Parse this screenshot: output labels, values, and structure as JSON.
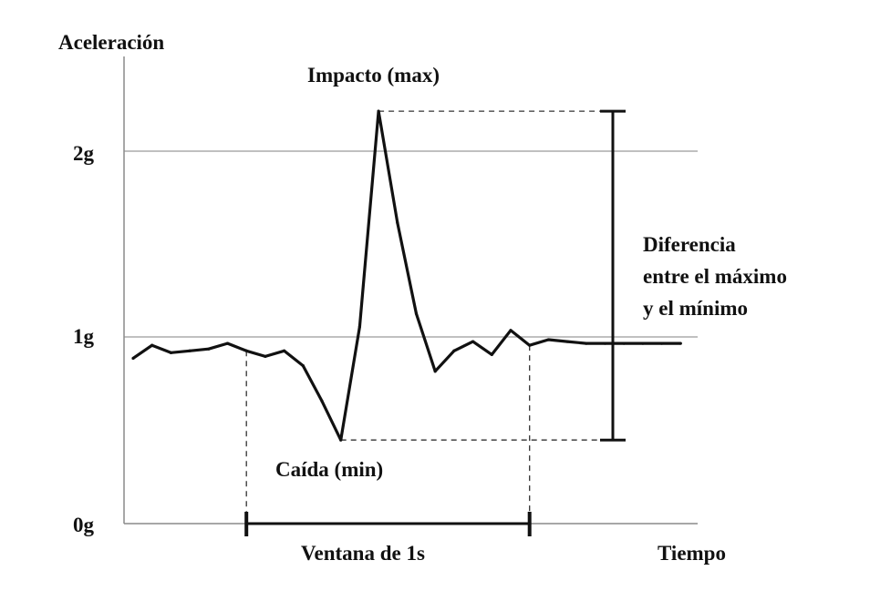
{
  "labels": {
    "y_axis_title": "Aceleración",
    "x_axis_title": "Tiempo",
    "impact": "Impacto (max)",
    "fall": "Caída (min)",
    "window": "Ventana de 1s",
    "difference_line1": "Diferencia",
    "difference_line2": "entre el máximo",
    "difference_line3": "y el mínimo"
  },
  "y_ticks": [
    "2g",
    "1g",
    "0g"
  ],
  "colors": {
    "signal": "#111111",
    "grid": "#9a9a9a",
    "axis": "#8a8a8a",
    "annotation": "#111111",
    "dashed": "#333333"
  },
  "chart_data": {
    "type": "line",
    "xlabel": "Tiempo",
    "ylabel": "Aceleración",
    "y_units": "g",
    "ylim": [
      0,
      2.3
    ],
    "y_gridlines": [
      1,
      2
    ],
    "series": [
      {
        "values": [
          0.89,
          0.96,
          0.92,
          0.93,
          0.94,
          0.97,
          0.93,
          0.9,
          0.93,
          0.85,
          0.66,
          0.45,
          1.06,
          2.22,
          1.62,
          1.13,
          0.82,
          0.93,
          0.98,
          0.91,
          1.04,
          0.96,
          0.99,
          0.98,
          0.97,
          0.97,
          0.97,
          0.97,
          0.97,
          0.97
        ]
      }
    ],
    "annotations": {
      "max_value": 2.22,
      "min_value": 0.45,
      "max_index": 13,
      "min_index": 11,
      "window_start_index": 6,
      "window_end_index": 21,
      "window_duration": "1s"
    }
  }
}
